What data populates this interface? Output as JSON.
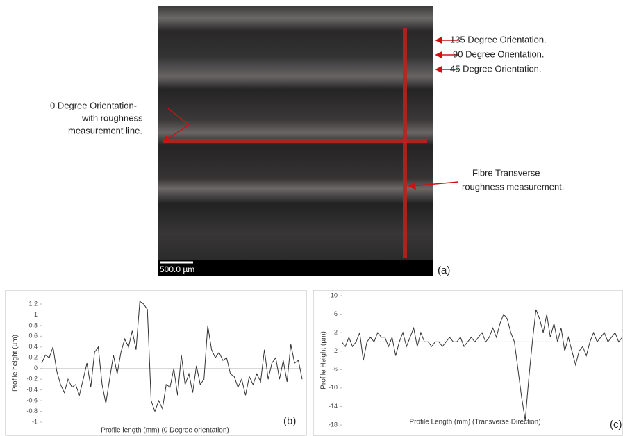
{
  "panel_a": {
    "scale_label": "500.0 µm",
    "panel_label": "(a)",
    "annotations": [
      "135 Degree Orientation.",
      "90 Degree Orientation.",
      "45 Degree Orientation.",
      "0 Degree Orientation-",
      "with roughness",
      "measurement line.",
      "Fibre Transverse",
      "roughness measurement."
    ]
  },
  "chart_data": [
    {
      "type": "line",
      "y_label": "Profile height (µm)",
      "x_label": "Profile length (mm) (0 Degree orientation)",
      "panel_label": "(b)",
      "color": "#333333",
      "zero_line": true,
      "ylim": [
        -1,
        1.2
      ],
      "yticks": [
        1.2,
        1,
        0.8,
        0.6,
        0.4,
        0.2,
        0,
        -0.2,
        -0.4,
        -0.6,
        -0.8,
        -1
      ],
      "values": [
        0.1,
        0.25,
        0.2,
        0.4,
        -0.05,
        -0.3,
        -0.45,
        -0.2,
        -0.35,
        -0.3,
        -0.5,
        -0.2,
        0.1,
        -0.35,
        0.3,
        0.4,
        -0.3,
        -0.65,
        -0.2,
        0.25,
        -0.1,
        0.3,
        0.55,
        0.4,
        0.7,
        0.35,
        1.25,
        1.2,
        1.1,
        -0.6,
        -0.8,
        -0.6,
        -0.75,
        -0.3,
        -0.35,
        0,
        -0.5,
        0.25,
        -0.3,
        -0.1,
        -0.45,
        0.05,
        -0.3,
        -0.2,
        0.8,
        0.35,
        0.2,
        0.3,
        0.15,
        0.2,
        -0.1,
        -0.15,
        -0.35,
        -0.2,
        -0.5,
        -0.15,
        -0.3,
        -0.1,
        -0.25,
        0.35,
        -0.2,
        0.1,
        0.2,
        -0.2,
        0.15,
        -0.25,
        0.45,
        0.1,
        0.15,
        -0.2
      ]
    },
    {
      "type": "line",
      "y_label": "Profile Height (µm)",
      "x_label": "Profile Length (mm) (Transverse Direction)",
      "panel_label": "(c)",
      "color": "#333333",
      "zero_line": true,
      "ylim": [
        -18,
        10
      ],
      "yticks": [
        10,
        6,
        2,
        -2,
        -6,
        -10,
        -14,
        -18
      ],
      "values": [
        0,
        -1,
        1,
        -1,
        0,
        2,
        -4,
        0,
        1,
        0,
        2,
        1,
        1,
        -1,
        1,
        -3,
        0,
        2,
        -1,
        1,
        3,
        -1,
        2,
        0,
        0,
        -1,
        0,
        0,
        -1,
        0,
        1,
        0,
        0,
        1,
        -1,
        0,
        1,
        0,
        1,
        2,
        0,
        1,
        3,
        1,
        4,
        6,
        5,
        2,
        0,
        -6,
        -12,
        -17,
        -8,
        0,
        7,
        5,
        2,
        6,
        1,
        4,
        0,
        3,
        -2,
        1,
        -2,
        -5,
        -2,
        -1,
        -3,
        0,
        2,
        0,
        1,
        2,
        0,
        1,
        2,
        0,
        1
      ]
    }
  ]
}
